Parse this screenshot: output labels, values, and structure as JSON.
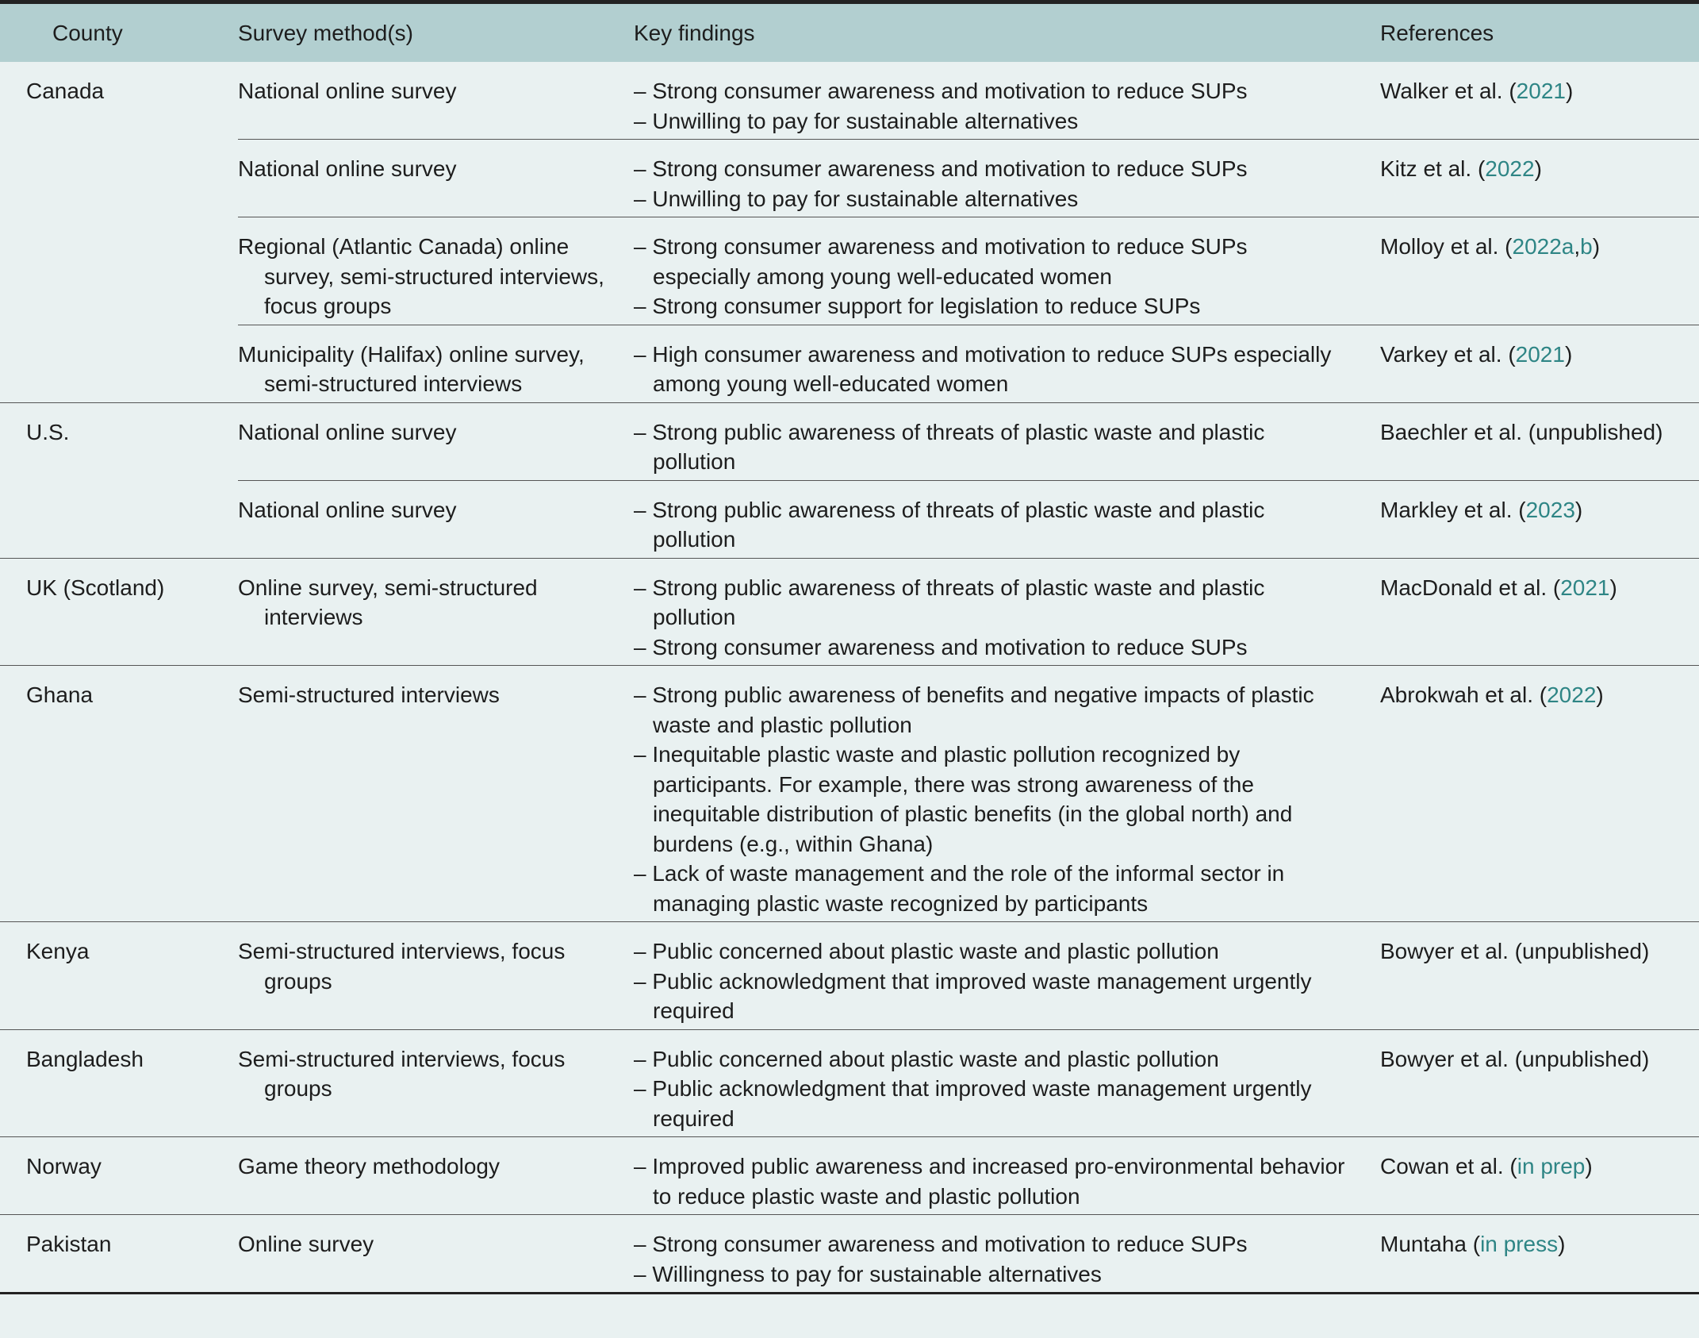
{
  "header": [
    "County",
    "Survey method(s)",
    "Key findings",
    "References"
  ],
  "groups": [
    {
      "county": "Canada",
      "rows": [
        {
          "method": "National online survey",
          "findings": [
            "– Strong consumer awareness and motivation to reduce SUPs",
            "– Unwilling to pay for sustainable alternatives"
          ],
          "reference": [
            {
              "text": "Walker et al. ("
            },
            {
              "text": "2021",
              "link": true
            },
            {
              "text": ")"
            }
          ]
        },
        {
          "method": "National online survey",
          "findings": [
            "– Strong consumer awareness and motivation to reduce SUPs",
            "– Unwilling to pay for sustainable alternatives"
          ],
          "reference": [
            {
              "text": "Kitz et al. ("
            },
            {
              "text": "2022",
              "link": true
            },
            {
              "text": ")"
            }
          ]
        },
        {
          "method": "Regional (Atlantic Canada) online survey, semi-structured interviews, focus groups",
          "findings": [
            "– Strong consumer awareness and motivation to reduce SUPs especially among young well-educated women",
            "– Strong consumer support for legislation to reduce SUPs"
          ],
          "reference": [
            {
              "text": "Molloy et al. ("
            },
            {
              "text": "2022a",
              "link": true
            },
            {
              "text": ","
            },
            {
              "text": "b",
              "link": true
            },
            {
              "text": ")"
            }
          ]
        },
        {
          "method": "Municipality (Halifax) online survey, semi-structured interviews",
          "findings": [
            "– High consumer awareness and motivation to reduce SUPs especially among young well-educated women"
          ],
          "reference": [
            {
              "text": "Varkey et al. ("
            },
            {
              "text": "2021",
              "link": true
            },
            {
              "text": ")"
            }
          ]
        }
      ]
    },
    {
      "county": "U.S.",
      "rows": [
        {
          "method": "National online survey",
          "findings": [
            "– Strong public awareness of threats of plastic waste and plastic pollution"
          ],
          "reference": [
            {
              "text": "Baechler et al. (unpublished)"
            }
          ]
        },
        {
          "method": "National online survey",
          "findings": [
            "– Strong public awareness of threats of plastic waste and plastic pollution"
          ],
          "reference": [
            {
              "text": "Markley et al. ("
            },
            {
              "text": "2023",
              "link": true
            },
            {
              "text": ")"
            }
          ]
        }
      ]
    },
    {
      "county": "UK (Scotland)",
      "rows": [
        {
          "method": "Online survey, semi-structured interviews",
          "findings": [
            "– Strong public awareness of threats of plastic waste and plastic pollution",
            "– Strong consumer awareness and motivation to reduce SUPs"
          ],
          "reference": [
            {
              "text": "MacDonald et al. ("
            },
            {
              "text": "2021",
              "link": true
            },
            {
              "text": ")"
            }
          ]
        }
      ]
    },
    {
      "county": "Ghana",
      "rows": [
        {
          "method": "Semi-structured interviews",
          "findings": [
            "– Strong public awareness of benefits and negative impacts of plastic waste and plastic pollution",
            "– Inequitable plastic waste and plastic pollution recognized by participants. For example, there was strong awareness of the inequitable distribution of plastic benefits (in the global north) and burdens (e.g., within Ghana)",
            "– Lack of waste management and the role of the informal sector in managing plastic waste recognized by participants"
          ],
          "reference": [
            {
              "text": "Abrokwah et al. ("
            },
            {
              "text": "2022",
              "link": true
            },
            {
              "text": ")"
            }
          ]
        }
      ]
    },
    {
      "county": "Kenya",
      "rows": [
        {
          "method": "Semi-structured interviews, focus groups",
          "findings": [
            "– Public concerned about plastic waste and plastic pollution",
            "– Public acknowledgment that improved waste management urgently required"
          ],
          "reference": [
            {
              "text": "Bowyer et al. (unpublished)"
            }
          ]
        }
      ]
    },
    {
      "county": "Bangladesh",
      "rows": [
        {
          "method": "Semi-structured interviews, focus groups",
          "findings": [
            "– Public concerned about plastic waste and plastic pollution",
            "– Public acknowledgment that improved waste management urgently required"
          ],
          "reference": [
            {
              "text": "Bowyer et al. (unpublished)"
            }
          ]
        }
      ]
    },
    {
      "county": "Norway",
      "rows": [
        {
          "method": "Game theory methodology",
          "findings": [
            "– Improved public awareness and increased pro-environmental behavior to reduce plastic waste and plastic pollution"
          ],
          "reference": [
            {
              "text": "Cowan et al. ("
            },
            {
              "text": "in prep",
              "link": true
            },
            {
              "text": ")"
            }
          ]
        }
      ]
    },
    {
      "county": "Pakistan",
      "rows": [
        {
          "method": "Online survey",
          "findings": [
            "– Strong consumer awareness and motivation to reduce SUPs",
            "– Willingness to pay for sustainable alternatives"
          ],
          "reference": [
            {
              "text": "Muntaha ("
            },
            {
              "text": "in press",
              "link": true
            },
            {
              "text": ")"
            }
          ]
        }
      ]
    }
  ]
}
